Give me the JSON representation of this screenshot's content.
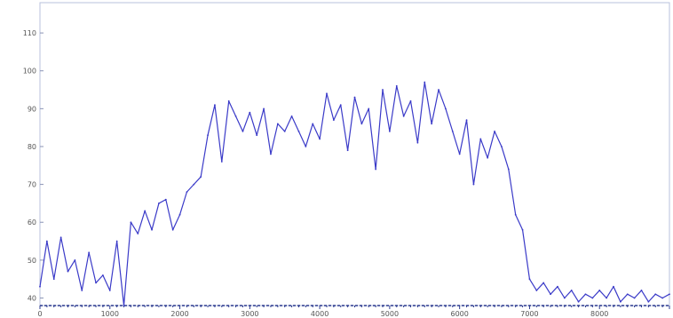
{
  "chart_data": {
    "type": "line",
    "title": "",
    "xlabel": "",
    "ylabel": "",
    "xlim": [
      0,
      9000
    ],
    "ylim": [
      38,
      118
    ],
    "x_ticks": [
      {
        "value": 0,
        "label": "0"
      },
      {
        "value": 1000,
        "label": "1000"
      },
      {
        "value": 2000,
        "label": "2000"
      },
      {
        "value": 3000,
        "label": "3000"
      },
      {
        "value": 4000,
        "label": "4000"
      },
      {
        "value": 5000,
        "label": "5000"
      },
      {
        "value": 6000,
        "label": "6000"
      },
      {
        "value": 7000,
        "label": "7000"
      },
      {
        "value": 8000,
        "label": "8000"
      }
    ],
    "y_ticks": [
      {
        "value": 40,
        "label": "40"
      },
      {
        "value": 50,
        "label": "50"
      },
      {
        "value": 60,
        "label": "60"
      },
      {
        "value": 70,
        "label": "70"
      },
      {
        "value": 80,
        "label": "80"
      },
      {
        "value": 90,
        "label": "90"
      },
      {
        "value": 100,
        "label": "100"
      },
      {
        "value": 110,
        "label": "110"
      }
    ],
    "grid": false,
    "colors": {
      "line": "#3a3ac8",
      "axis": "#2b3a8f",
      "frame": "#b9c2dc"
    },
    "series": [
      {
        "color": "#3a3ac8",
        "x": [
          0,
          100,
          200,
          300,
          400,
          500,
          600,
          700,
          800,
          900,
          1000,
          1100,
          1200,
          1300,
          1400,
          1500,
          1600,
          1700,
          1800,
          1900,
          2000,
          2100,
          2200,
          2300,
          2400,
          2500,
          2600,
          2700,
          2800,
          2900,
          3000,
          3100,
          3200,
          3300,
          3400,
          3500,
          3600,
          3700,
          3800,
          3900,
          4000,
          4100,
          4200,
          4300,
          4400,
          4500,
          4600,
          4700,
          4800,
          4900,
          5000,
          5100,
          5200,
          5300,
          5400,
          5500,
          5600,
          5700,
          5800,
          5900,
          6000,
          6100,
          6200,
          6300,
          6400,
          6500,
          6600,
          6700,
          6800,
          6900,
          7000,
          7100,
          7200,
          7300,
          7400,
          7500,
          7600,
          7700,
          7800,
          7900,
          8000,
          8100,
          8200,
          8300,
          8400,
          8500,
          8600,
          8700,
          8800,
          8900,
          9000
        ],
        "y": [
          43,
          55,
          45,
          56,
          47,
          50,
          42,
          52,
          44,
          46,
          42,
          55,
          38,
          60,
          57,
          63,
          58,
          65,
          66,
          58,
          62,
          68,
          70,
          72,
          83,
          91,
          76,
          92,
          88,
          84,
          89,
          83,
          90,
          78,
          86,
          84,
          88,
          84,
          80,
          86,
          82,
          94,
          87,
          91,
          79,
          93,
          86,
          90,
          74,
          95,
          84,
          96,
          88,
          92,
          81,
          97,
          86,
          95,
          90,
          84,
          78,
          87,
          70,
          82,
          77,
          84,
          80,
          74,
          62,
          58,
          45,
          42,
          44,
          41,
          43,
          40,
          42,
          39,
          41,
          40,
          42,
          40,
          43,
          39,
          41,
          40,
          42,
          39,
          41,
          40,
          41
        ]
      }
    ]
  }
}
